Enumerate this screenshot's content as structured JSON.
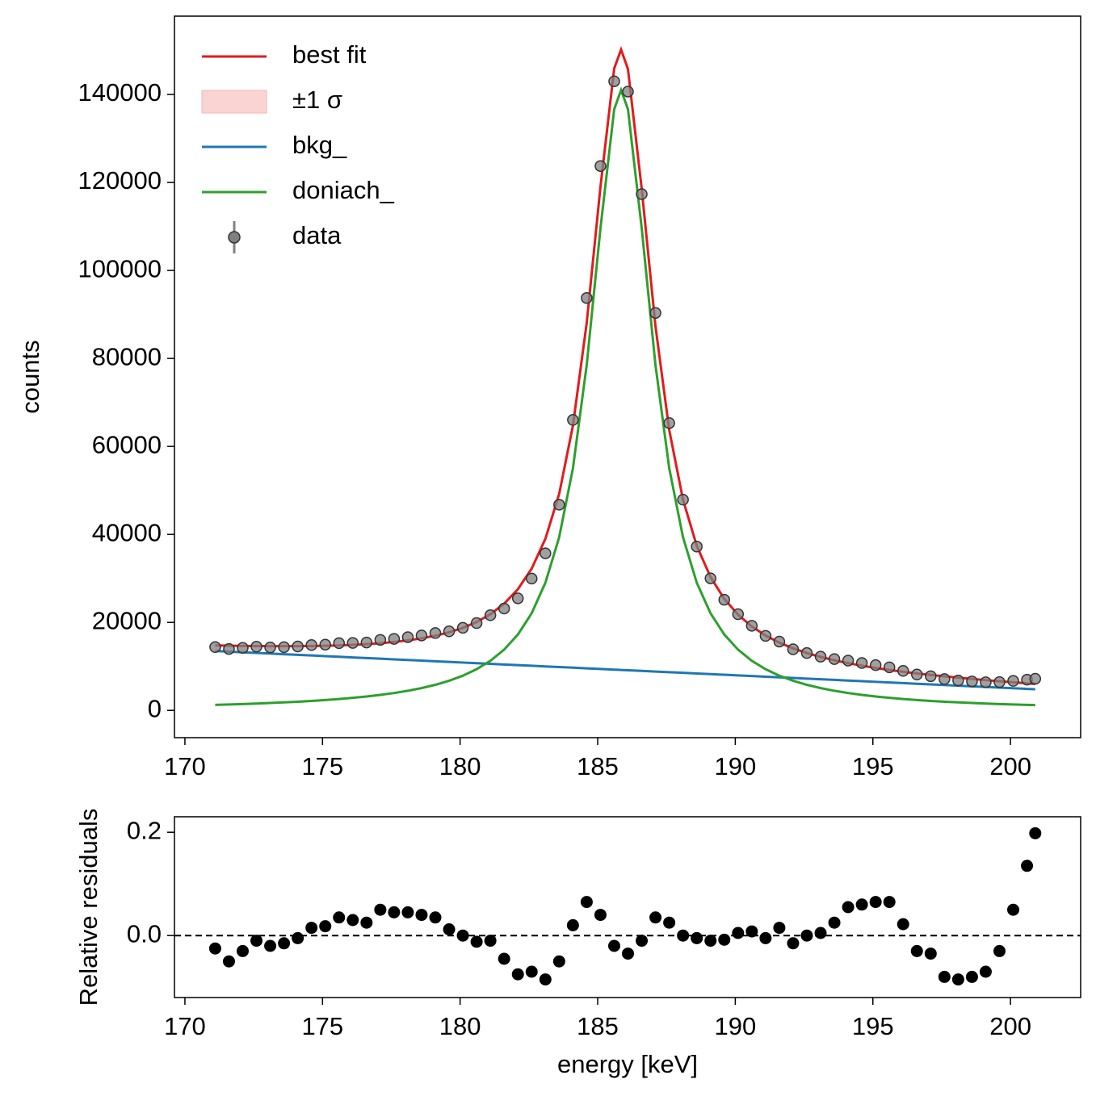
{
  "chart_data": [
    {
      "type": "line",
      "ylabel": "counts",
      "xlim": [
        169.62,
        202.55
      ],
      "ylim": [
        -6200,
        157800
      ],
      "xticks": [
        170,
        175,
        180,
        185,
        190,
        195,
        200
      ],
      "yticks": [
        0,
        20000,
        40000,
        60000,
        80000,
        100000,
        120000,
        140000
      ],
      "legend": "upper left",
      "x": [
        171.1,
        171.6,
        172.1,
        172.6,
        173.1,
        173.6,
        174.1,
        174.6,
        175.1,
        175.6,
        176.1,
        176.6,
        177.1,
        177.6,
        178.1,
        178.6,
        179.1,
        179.6,
        180.1,
        180.6,
        181.1,
        181.6,
        182.1,
        182.6,
        183.1,
        183.6,
        184.1,
        184.6,
        185.1,
        185.6,
        185.85,
        186.1,
        186.6,
        187.1,
        187.6,
        188.1,
        188.6,
        189.1,
        189.6,
        190.1,
        190.6,
        191.1,
        191.6,
        192.1,
        192.6,
        193.1,
        193.6,
        194.1,
        194.6,
        195.1,
        195.6,
        196.1,
        196.6,
        197.1,
        197.6,
        198.1,
        198.6,
        199.1,
        199.6,
        200.1,
        200.6,
        200.9
      ],
      "series": [
        {
          "name": "best fit",
          "color": "#e31a1c",
          "style": "line",
          "values": [
            14759,
            14702,
            14655,
            14619,
            14596,
            14588,
            14598,
            14628,
            14684,
            14768,
            14888,
            15052,
            15268,
            15549,
            15912,
            16378,
            16978,
            17755,
            18762,
            20088,
            21851,
            24236,
            27536,
            32211,
            39014,
            49202,
            64728,
            88022,
            118969,
            145907,
            150193,
            145761,
            118531,
            87292,
            63706,
            47888,
            37408,
            30313,
            25346,
            21754,
            19077,
            17022,
            15404,
            14105,
            13036,
            12144,
            11386,
            10731,
            10158,
            9650,
            9194,
            8782,
            8406,
            8058,
            7736,
            7434,
            7150,
            6881,
            6625,
            6380,
            6145,
            6007
          ]
        },
        {
          "name": "±1 σ",
          "color": "#f7b6b6",
          "style": "band"
        },
        {
          "name": "bkg_",
          "color": "#1f77b4",
          "style": "line",
          "values": [
            13500,
            13354,
            13208,
            13062,
            12916,
            12770,
            12624,
            12478,
            12332,
            12186,
            12040,
            11894,
            11748,
            11602,
            11456,
            11310,
            11164,
            11018,
            10872,
            10726,
            10580,
            10434,
            10288,
            10142,
            9996,
            9850,
            9704,
            9558,
            9412,
            9266,
            9193,
            9120,
            8974,
            8828,
            8682,
            8536,
            8390,
            8244,
            8098,
            7952,
            7806,
            7660,
            7514,
            7368,
            7222,
            7076,
            6930,
            6784,
            6638,
            6492,
            6346,
            6200,
            6054,
            5908,
            5762,
            5616,
            5470,
            5324,
            5178,
            5032,
            4886,
            4798
          ]
        },
        {
          "name": "doniach_",
          "color": "#2ca02c",
          "style": "line",
          "values": [
            1259,
            1348,
            1447,
            1557,
            1680,
            1818,
            1974,
            2150,
            2352,
            2582,
            2848,
            3158,
            3520,
            3947,
            4456,
            5068,
            5814,
            6737,
            7890,
            9362,
            11271,
            13802,
            17248,
            22069,
            29018,
            39352,
            55024,
            78464,
            109557,
            136641,
            141000,
            136641,
            109557,
            78464,
            55024,
            39352,
            29018,
            22069,
            17248,
            13802,
            11271,
            9362,
            7890,
            6737,
            5814,
            5068,
            4456,
            3947,
            3520,
            3158,
            2848,
            2582,
            2352,
            2150,
            1974,
            1818,
            1680,
            1557,
            1447,
            1348,
            1259,
            1209
          ]
        },
        {
          "name": "data",
          "color": "#808080",
          "style": "points",
          "x": [
            171.1,
            171.6,
            172.1,
            172.6,
            173.1,
            173.6,
            174.1,
            174.6,
            175.1,
            175.6,
            176.1,
            176.6,
            177.1,
            177.6,
            178.1,
            178.6,
            179.1,
            179.6,
            180.1,
            180.6,
            181.1,
            181.6,
            182.1,
            182.6,
            183.1,
            183.6,
            184.1,
            184.6,
            185.1,
            185.6,
            186.1,
            186.6,
            187.1,
            187.6,
            188.1,
            188.6,
            189.1,
            189.6,
            190.1,
            190.6,
            191.1,
            191.6,
            192.1,
            192.6,
            193.1,
            193.6,
            194.1,
            194.6,
            195.1,
            195.6,
            196.1,
            196.6,
            197.1,
            197.6,
            198.1,
            198.6,
            199.1,
            199.6,
            200.1,
            200.6,
            200.9
          ],
          "values": [
            14390,
            13967,
            14215,
            14473,
            14304,
            14369,
            14525,
            14847,
            14948,
            15285,
            15335,
            15428,
            16031,
            16249,
            16628,
            17033,
            17572,
            17968,
            18762,
            19847,
            21632,
            23145,
            25471,
            29956,
            35698,
            46742,
            66023,
            93743,
            123728,
            142989,
            140659,
            117346,
            90347,
            65299,
            47888,
            37221,
            30010,
            25143,
            21863,
            19230,
            16937,
            15635,
            13893,
            13036,
            12205,
            11671,
            11321,
            10767,
            10277,
            9792,
            8975,
            8154,
            7776,
            7117,
            6802,
            6578,
            6399,
            6426,
            6699,
            6975,
            7196
          ]
        }
      ]
    },
    {
      "type": "scatter",
      "xlabel": "energy [keV]",
      "ylabel": "Relative residuals",
      "xlim": [
        169.62,
        202.55
      ],
      "ylim": [
        -0.12,
        0.23
      ],
      "xticks": [
        170,
        175,
        180,
        185,
        190,
        195,
        200
      ],
      "yticks": [
        {
          "value": 0,
          "label": "0.0"
        },
        {
          "value": 0.2,
          "label": "0.2"
        }
      ],
      "hline": 0,
      "color": "#000000",
      "x": [
        171.1,
        171.6,
        172.1,
        172.6,
        173.1,
        173.6,
        174.1,
        174.6,
        175.1,
        175.6,
        176.1,
        176.6,
        177.1,
        177.6,
        178.1,
        178.6,
        179.1,
        179.6,
        180.1,
        180.6,
        181.1,
        181.6,
        182.1,
        182.6,
        183.1,
        183.6,
        184.1,
        184.6,
        185.1,
        185.6,
        186.1,
        186.6,
        187.1,
        187.6,
        188.1,
        188.6,
        189.1,
        189.6,
        190.1,
        190.6,
        191.1,
        191.6,
        192.1,
        192.6,
        193.1,
        193.6,
        194.1,
        194.6,
        195.1,
        195.6,
        196.1,
        196.6,
        197.1,
        197.6,
        198.1,
        198.6,
        199.1,
        199.6,
        200.1,
        200.6,
        200.9
      ],
      "values": [
        -0.025,
        -0.05,
        -0.03,
        -0.01,
        -0.02,
        -0.015,
        -0.005,
        0.015,
        0.018,
        0.035,
        0.03,
        0.025,
        0.05,
        0.045,
        0.045,
        0.04,
        0.035,
        0.012,
        0,
        -0.012,
        -0.01,
        -0.045,
        -0.075,
        -0.07,
        -0.085,
        -0.05,
        0.02,
        0.065,
        0.04,
        -0.02,
        -0.035,
        -0.01,
        0.035,
        0.025,
        0,
        -0.005,
        -0.01,
        -0.008,
        0.005,
        0.008,
        -0.005,
        0.015,
        -0.015,
        0,
        0.005,
        0.025,
        0.055,
        0.06,
        0.065,
        0.065,
        0.022,
        -0.03,
        -0.035,
        -0.08,
        -0.085,
        -0.08,
        -0.07,
        -0.03,
        0.05,
        0.135,
        0.198
      ]
    }
  ]
}
